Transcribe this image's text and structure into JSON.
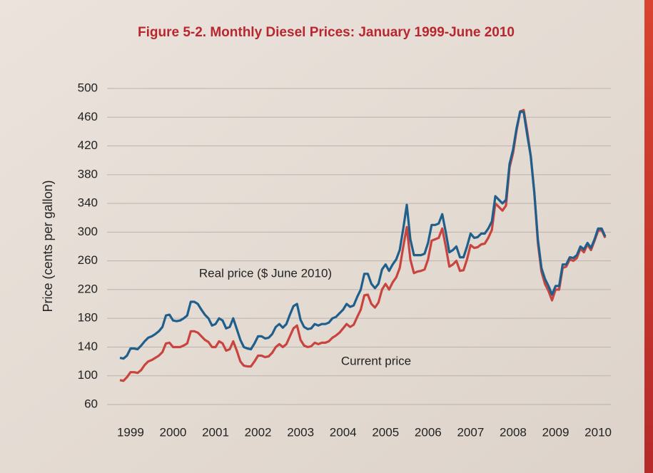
{
  "chart_data": {
    "type": "line",
    "title": "Figure 5-2.  Monthly Diesel Prices:  January 1999-June 2010",
    "y_label": "Price (cents per gallon)",
    "annotations": [
      "Real price ($ June 2010)",
      "Current price"
    ],
    "categories": [
      null,
      null,
      null,
      "1999",
      null,
      null,
      null,
      null,
      null,
      null,
      null,
      null,
      null,
      null,
      null,
      "2000",
      null,
      null,
      null,
      null,
      null,
      null,
      null,
      null,
      null,
      null,
      null,
      "2001",
      null,
      null,
      null,
      null,
      null,
      null,
      null,
      null,
      null,
      null,
      null,
      "2002",
      null,
      null,
      null,
      null,
      null,
      null,
      null,
      null,
      null,
      null,
      null,
      "2003",
      null,
      null,
      null,
      null,
      null,
      null,
      null,
      null,
      null,
      null,
      null,
      "2004",
      null,
      null,
      null,
      null,
      null,
      null,
      null,
      null,
      null,
      null,
      null,
      "2005",
      null,
      null,
      null,
      null,
      null,
      null,
      null,
      null,
      null,
      null,
      null,
      "2006",
      null,
      null,
      null,
      null,
      null,
      null,
      null,
      null,
      null,
      null,
      null,
      "2007",
      null,
      null,
      null,
      null,
      null,
      null,
      null,
      null,
      null,
      null,
      null,
      "2008",
      null,
      null,
      null,
      null,
      null,
      null,
      null,
      null,
      null,
      null,
      null,
      "2009",
      null,
      null,
      null,
      null,
      null,
      null,
      null,
      null,
      null,
      null,
      null,
      "2010",
      null,
      null
    ],
    "series": [
      {
        "name": "Real price ($ June 2010)",
        "color": "#1f5f8b",
        "values": [
          125,
          124,
          128,
          138,
          138,
          137,
          142,
          148,
          153,
          155,
          158,
          162,
          168,
          184,
          185,
          177,
          176,
          177,
          180,
          184,
          203,
          203,
          200,
          192,
          185,
          180,
          170,
          172,
          180,
          177,
          166,
          168,
          180,
          165,
          150,
          140,
          138,
          137,
          145,
          155,
          155,
          152,
          153,
          158,
          168,
          172,
          167,
          172,
          185,
          197,
          200,
          178,
          168,
          165,
          166,
          172,
          170,
          172,
          172,
          174,
          180,
          182,
          187,
          192,
          200,
          196,
          198,
          210,
          220,
          242,
          242,
          228,
          222,
          228,
          248,
          255,
          246,
          255,
          262,
          275,
          305,
          338,
          290,
          268,
          268,
          268,
          270,
          285,
          310,
          310,
          312,
          325,
          300,
          272,
          275,
          280,
          265,
          265,
          280,
          298,
          292,
          293,
          298,
          298,
          305,
          315,
          350,
          345,
          340,
          345,
          395,
          415,
          445,
          468,
          467,
          435,
          405,
          355,
          290,
          250,
          235,
          225,
          213,
          225,
          225,
          255,
          255,
          265,
          264,
          268,
          280,
          276,
          285,
          278,
          290,
          305,
          305,
          294
        ]
      },
      {
        "name": "Current price",
        "color": "#c9443e",
        "values": [
          94,
          93,
          98,
          105,
          105,
          104,
          108,
          115,
          120,
          122,
          125,
          128,
          133,
          145,
          146,
          140,
          140,
          140,
          142,
          145,
          162,
          162,
          160,
          155,
          150,
          147,
          140,
          140,
          148,
          145,
          135,
          137,
          148,
          135,
          120,
          114,
          113,
          113,
          120,
          128,
          128,
          126,
          127,
          132,
          140,
          144,
          140,
          144,
          155,
          166,
          170,
          150,
          142,
          140,
          141,
          146,
          144,
          146,
          146,
          148,
          153,
          156,
          160,
          166,
          172,
          168,
          171,
          182,
          192,
          212,
          213,
          200,
          195,
          202,
          220,
          228,
          220,
          230,
          237,
          250,
          280,
          307,
          262,
          243,
          245,
          246,
          248,
          262,
          288,
          290,
          292,
          305,
          280,
          252,
          255,
          260,
          246,
          247,
          262,
          282,
          278,
          279,
          283,
          284,
          292,
          303,
          340,
          335,
          330,
          337,
          390,
          410,
          442,
          468,
          470,
          440,
          405,
          355,
          285,
          245,
          228,
          218,
          205,
          220,
          220,
          250,
          252,
          262,
          260,
          264,
          277,
          272,
          283,
          275,
          288,
          302,
          303,
          292
        ]
      }
    ],
    "ylim": [
      60,
      500
    ],
    "yticks": [
      60,
      100,
      140,
      180,
      220,
      260,
      300,
      340,
      380,
      420,
      460,
      500
    ],
    "grid": true
  }
}
